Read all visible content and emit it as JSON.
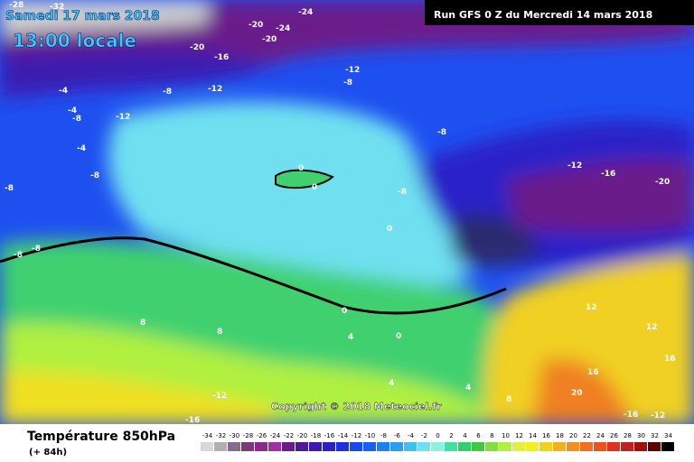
{
  "header": {
    "valid_date": "Samedi 17 mars 2018",
    "local_time": "13:00 locale",
    "run": "Run GFS 0 Z du Mercredi 14 mars 2018"
  },
  "map": {
    "contour_labels": [
      "-28",
      "-32",
      "-24",
      "-20",
      "-24",
      "-20",
      "-20",
      "-16",
      "-12",
      "-8",
      "-12",
      "-8",
      "-12",
      "-4",
      "-8",
      "-4",
      "-8",
      "-8",
      "-4",
      "-8",
      "0",
      "0",
      "-8",
      "0",
      "-8",
      "-12",
      "-16",
      "-20",
      "-8",
      "0",
      "4",
      "8",
      "8",
      "-12",
      "-16",
      "4",
      "0",
      "4",
      "8",
      "12",
      "16",
      "12",
      "16",
      "20",
      "-12",
      "-16"
    ]
  },
  "copyright": "Copyright © 2018 Meteociel.fr",
  "footer": {
    "title": "Température 850hPa",
    "lead": "(+ 84h)"
  },
  "legend": {
    "labels": [
      "-34",
      "-32",
      "-30",
      "-28",
      "-26",
      "-24",
      "-22",
      "-20",
      "-18",
      "-16",
      "-14",
      "-12",
      "-10",
      "-8",
      "-6",
      "-4",
      "-2",
      "0",
      "2",
      "4",
      "6",
      "8",
      "10",
      "12",
      "14",
      "16",
      "18",
      "20",
      "22",
      "24",
      "26",
      "28",
      "30",
      "32",
      "34"
    ],
    "colors": [
      "#d8d8d8",
      "#b0b0b0",
      "#8a6a8a",
      "#7a3a7a",
      "#8a2a8a",
      "#a030a0",
      "#6a1a8a",
      "#4a1a9a",
      "#3a1ab0",
      "#2a20c8",
      "#1e30e0",
      "#1a48f0",
      "#1a60f0",
      "#1e80f0",
      "#28a0f0",
      "#40c0f0",
      "#70e0f0",
      "#90f0e0",
      "#40e0a0",
      "#30d070",
      "#40c840",
      "#80e040",
      "#b0f040",
      "#e0f040",
      "#f0f020",
      "#f0d020",
      "#f0b020",
      "#f09020",
      "#f07020",
      "#f05020",
      "#e03020",
      "#c02020",
      "#a01010",
      "#600000",
      "#000000"
    ]
  }
}
